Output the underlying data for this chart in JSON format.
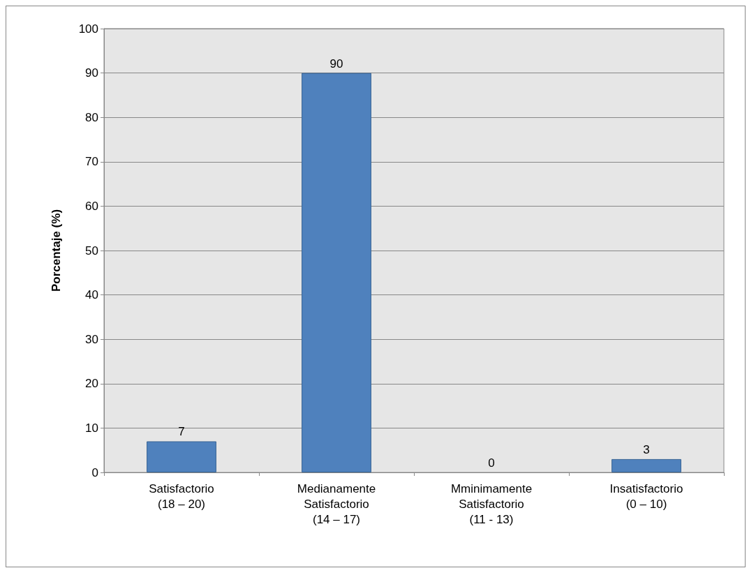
{
  "chart_data": {
    "type": "bar",
    "ylabel": "Porcentaje (%)",
    "categories": [
      "Satisfactorio\n(18 – 20)",
      "Medianamente\nSatisfactorio\n(14 – 17)",
      "Mminimamente\nSatisfactorio\n(11 - 13)",
      "Insatisfactorio\n(0 – 10)"
    ],
    "values": [
      7,
      90,
      0,
      3
    ],
    "color": "#4f81bd",
    "ylim": [
      0,
      100
    ],
    "yticks": [
      0,
      10,
      20,
      30,
      40,
      50,
      60,
      70,
      80,
      90,
      100
    ],
    "grid": "y",
    "data_labels": true
  }
}
